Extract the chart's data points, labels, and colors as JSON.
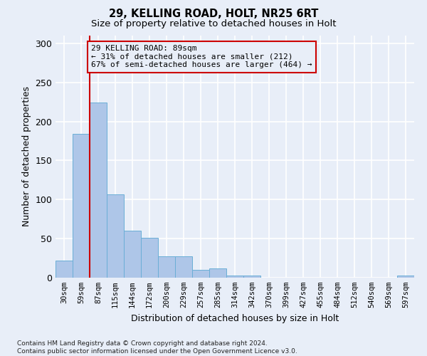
{
  "title1": "29, KELLING ROAD, HOLT, NR25 6RT",
  "title2": "Size of property relative to detached houses in Holt",
  "xlabel": "Distribution of detached houses by size in Holt",
  "ylabel": "Number of detached properties",
  "footnote": "Contains HM Land Registry data © Crown copyright and database right 2024.\nContains public sector information licensed under the Open Government Licence v3.0.",
  "bar_labels": [
    "30sqm",
    "59sqm",
    "87sqm",
    "115sqm",
    "144sqm",
    "172sqm",
    "200sqm",
    "229sqm",
    "257sqm",
    "285sqm",
    "314sqm",
    "342sqm",
    "370sqm",
    "399sqm",
    "427sqm",
    "455sqm",
    "484sqm",
    "512sqm",
    "540sqm",
    "569sqm",
    "597sqm"
  ],
  "bar_values": [
    22,
    184,
    224,
    107,
    60,
    51,
    27,
    27,
    10,
    12,
    3,
    3,
    0,
    0,
    0,
    0,
    0,
    0,
    0,
    0,
    3
  ],
  "bar_color": "#aec6e8",
  "bar_edge_color": "#6aaed6",
  "background_color": "#e8eef8",
  "grid_color": "#ffffff",
  "vline_color": "#cc0000",
  "annotation_box_text": "29 KELLING ROAD: 89sqm\n← 31% of detached houses are smaller (212)\n67% of semi-detached houses are larger (464) →",
  "annotation_box_color": "#cc0000",
  "ylim": [
    0,
    310
  ],
  "yticks": [
    0,
    50,
    100,
    150,
    200,
    250,
    300
  ],
  "figsize": [
    6.0,
    5.0
  ],
  "dpi": 100
}
